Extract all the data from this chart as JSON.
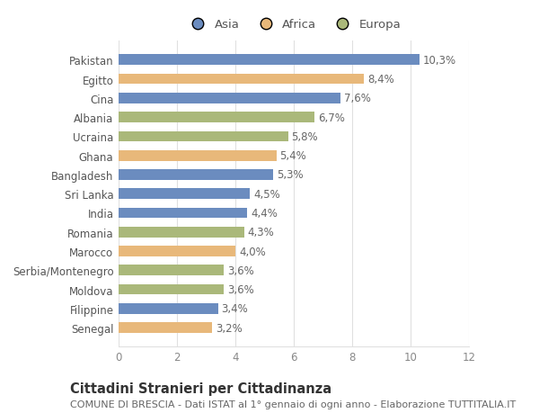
{
  "categories": [
    "Pakistan",
    "Egitto",
    "Cina",
    "Albania",
    "Ucraina",
    "Ghana",
    "Bangladesh",
    "Sri Lanka",
    "India",
    "Romania",
    "Marocco",
    "Serbia/Montenegro",
    "Moldova",
    "Filippine",
    "Senegal"
  ],
  "values": [
    10.3,
    8.4,
    7.6,
    6.7,
    5.8,
    5.4,
    5.3,
    4.5,
    4.4,
    4.3,
    4.0,
    3.6,
    3.6,
    3.4,
    3.2
  ],
  "continents": [
    "Asia",
    "Africa",
    "Asia",
    "Europa",
    "Europa",
    "Africa",
    "Asia",
    "Asia",
    "Asia",
    "Europa",
    "Africa",
    "Europa",
    "Europa",
    "Asia",
    "Africa"
  ],
  "colors": {
    "Asia": "#6b8cbf",
    "Africa": "#e8b87a",
    "Europa": "#aab87a"
  },
  "legend_labels": [
    "Asia",
    "Africa",
    "Europa"
  ],
  "xlim": [
    0,
    12
  ],
  "xticks": [
    0,
    2,
    4,
    6,
    8,
    10,
    12
  ],
  "title": "Cittadini Stranieri per Cittadinanza",
  "subtitle": "COMUNE DI BRESCIA - Dati ISTAT al 1° gennaio di ogni anno - Elaborazione TUTTITALIA.IT",
  "background_color": "#ffffff",
  "bar_height": 0.55,
  "value_label_color": "#666666",
  "label_fontsize": 8.5,
  "value_fontsize": 8.5,
  "title_fontsize": 10.5,
  "subtitle_fontsize": 8.0,
  "grid_color": "#e0e0e0"
}
